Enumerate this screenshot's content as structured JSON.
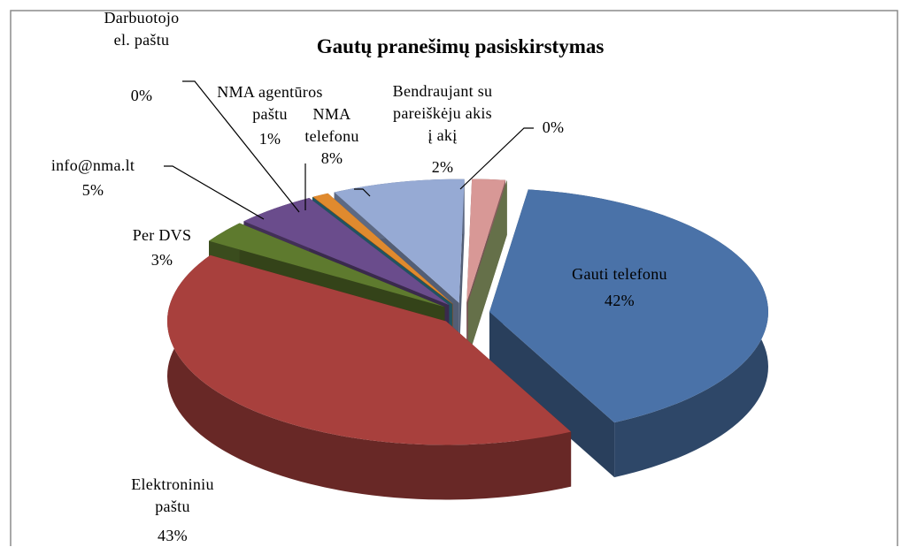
{
  "chart_data": {
    "type": "pie",
    "title": "Gautų pranešimų pasiskirstymas",
    "categories": [
      "Gauti telefonu",
      "Elektroniniu paštu",
      "Per DVS",
      "info@nma.lt",
      "Darbuotojo el. paštu",
      "NMA agentūros paštu",
      "NMA telefonu",
      "Bendraujant su pareiškėju akis į akį",
      null
    ],
    "values": [
      42,
      43,
      3,
      5,
      0,
      1,
      8,
      2,
      0
    ],
    "value_labels": [
      "42%",
      "43%",
      "3%",
      "5%",
      "0%",
      "1%",
      "8%",
      "2%",
      "0%"
    ],
    "colors": [
      "#4a72a8",
      "#a8403d",
      "#5e7a2e",
      "#6a4c8c",
      "#3a98b0",
      "#e08a2e",
      "#96aad4",
      "#d89896",
      "#b8cc84"
    ]
  }
}
